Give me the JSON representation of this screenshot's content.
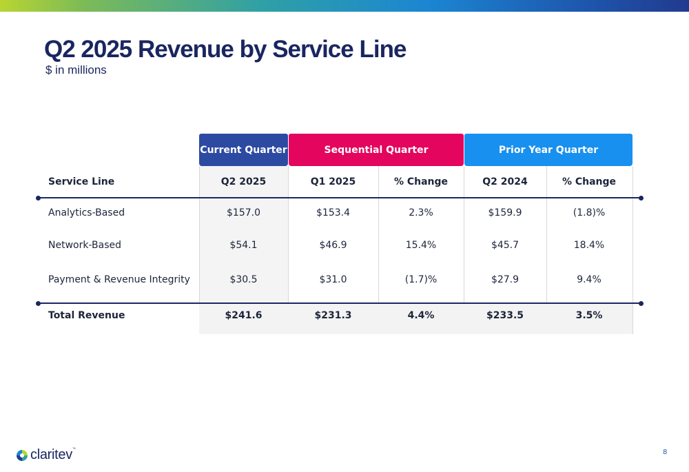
{
  "slide": {
    "title": "Q2 2025 Revenue by Service Line",
    "subtitle": "$ in millions",
    "page_number": "8"
  },
  "logo": {
    "text": "claritev",
    "trademark": "™",
    "icon": "claritev-logo-icon"
  },
  "colors": {
    "current_quarter": "#2d4aa3",
    "sequential_quarter": "#e3055e",
    "prior_year_quarter": "#1890ef",
    "rule": "#1a2660"
  },
  "table": {
    "groups": {
      "current": "Current Quarter",
      "sequential": "Sequential Quarter",
      "prior": "Prior Year Quarter"
    },
    "columns": [
      "Service Line",
      "Q2 2025",
      "Q1 2025",
      "% Change",
      "Q2 2024",
      "% Change"
    ],
    "rows": [
      [
        "Analytics-Based",
        "$157.0",
        "$153.4",
        "2.3%",
        "$159.9",
        "(1.8)%"
      ],
      [
        "Network-Based",
        "$54.1",
        "$46.9",
        "15.4%",
        "$45.7",
        "18.4%"
      ],
      [
        "Payment & Revenue Integrity",
        "$30.5",
        "$31.0",
        "(1.7)%",
        "$27.9",
        "9.4%"
      ]
    ],
    "total": [
      "Total Revenue",
      "$241.6",
      "$231.3",
      "4.4%",
      "$233.5",
      "3.5%"
    ]
  }
}
